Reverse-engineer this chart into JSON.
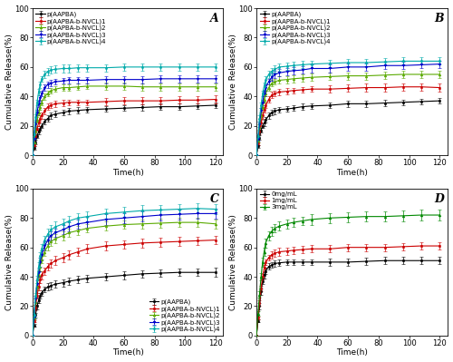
{
  "time": [
    0,
    1,
    2,
    3,
    4,
    5,
    6,
    8,
    10,
    12,
    15,
    20,
    24,
    30,
    36,
    48,
    60,
    72,
    84,
    96,
    108,
    120
  ],
  "A": {
    "label": "A",
    "series": {
      "p(AAPBA)": [
        0,
        5,
        9,
        13,
        16,
        18,
        20,
        23,
        25,
        27,
        28,
        29,
        30,
        30.5,
        31,
        31.5,
        32,
        32.5,
        33,
        33,
        33.5,
        34
      ],
      "p(AAPBA-b-NVCL)1": [
        0,
        7,
        13,
        18,
        22,
        25,
        27,
        30,
        33,
        34,
        35,
        35.5,
        36,
        36,
        36,
        36.5,
        37,
        37,
        37,
        37.5,
        37.5,
        38
      ],
      "p(AAPBA-b-NVCL)2": [
        0,
        9,
        17,
        24,
        29,
        33,
        36,
        40,
        42,
        44,
        45,
        46,
        46,
        46.5,
        47,
        47,
        47,
        46.5,
        46.5,
        46.5,
        46.5,
        46.5
      ],
      "p(AAPBA-b-NVCL)3": [
        0,
        11,
        21,
        29,
        35,
        39,
        42,
        46,
        48,
        49,
        50,
        50.5,
        51,
        51,
        51,
        51.5,
        51.5,
        51.5,
        52,
        52,
        52,
        52
      ],
      "p(AAPBA-b-NVCL)4": [
        0,
        14,
        26,
        36,
        43,
        48,
        52,
        55,
        57,
        58,
        58.5,
        59,
        59,
        59.5,
        59.5,
        59.5,
        60,
        60,
        60,
        60,
        60,
        60
      ]
    },
    "errors": {
      "p(AAPBA)": [
        0,
        1,
        1.5,
        1.5,
        1.5,
        1.5,
        1.5,
        2,
        2,
        2,
        2,
        2,
        2,
        2,
        2,
        2,
        2,
        2,
        2,
        2,
        2,
        2
      ],
      "p(AAPBA-b-NVCL)1": [
        0,
        1,
        1.5,
        1.5,
        2,
        2,
        2,
        2,
        2,
        2,
        2,
        2,
        2,
        2,
        2,
        2.5,
        2.5,
        2.5,
        2.5,
        2.5,
        2.5,
        2.5
      ],
      "p(AAPBA-b-NVCL)2": [
        0,
        1,
        1.5,
        2,
        2,
        2,
        2,
        2,
        2,
        2,
        2,
        2,
        2,
        2,
        2,
        2.5,
        2.5,
        2.5,
        2.5,
        2.5,
        2.5,
        2.5
      ],
      "p(AAPBA-b-NVCL)3": [
        0,
        1,
        2,
        2,
        2,
        2,
        2,
        2,
        2,
        2,
        2,
        2,
        2,
        2,
        2,
        2.5,
        2.5,
        2.5,
        2.5,
        2.5,
        2.5,
        2.5
      ],
      "p(AAPBA-b-NVCL)4": [
        0,
        1,
        2,
        2,
        2,
        2,
        2,
        2.5,
        2.5,
        2.5,
        2.5,
        2.5,
        2.5,
        2.5,
        2.5,
        2.5,
        2.5,
        2.5,
        2.5,
        2.5,
        2.5,
        2.5
      ]
    }
  },
  "B": {
    "label": "B",
    "series": {
      "p(AAPBA)": [
        0,
        6,
        12,
        17,
        20,
        22,
        24,
        27,
        29,
        30,
        31,
        31.5,
        32,
        33,
        33.5,
        34,
        35,
        35,
        35.5,
        36,
        36.5,
        37
      ],
      "p(AAPBA-b-NVCL)1": [
        0,
        8,
        16,
        22,
        27,
        31,
        34,
        38,
        41,
        42,
        43,
        43.5,
        44,
        44.5,
        45,
        45,
        45.5,
        46,
        46,
        46.5,
        46.5,
        46
      ],
      "p(AAPBA-b-NVCL)2": [
        0,
        10,
        19,
        27,
        33,
        38,
        42,
        46,
        49,
        50,
        51,
        51.5,
        52,
        52.5,
        53,
        53.5,
        54,
        54,
        54.5,
        55,
        55,
        55
      ],
      "p(AAPBA-b-NVCL)3": [
        0,
        11,
        21,
        30,
        36,
        42,
        46,
        50,
        53,
        55,
        56,
        57,
        57.5,
        58,
        59,
        59,
        60,
        60,
        61,
        61,
        61.5,
        62
      ],
      "p(AAPBA-b-NVCL)4": [
        0,
        13,
        25,
        34,
        42,
        47,
        51,
        55,
        57,
        58.5,
        60,
        60.5,
        61,
        61.5,
        62,
        62.5,
        63,
        63,
        63.5,
        64,
        64,
        64
      ]
    },
    "errors": {
      "p(AAPBA)": [
        0,
        1,
        1.5,
        1.5,
        1.5,
        2,
        2,
        2,
        2,
        2,
        2,
        2,
        2,
        2,
        2,
        2,
        2,
        2,
        2,
        2,
        2,
        2
      ],
      "p(AAPBA-b-NVCL)1": [
        0,
        1,
        1.5,
        2,
        2,
        2,
        2,
        2,
        2,
        2,
        2,
        2,
        2,
        2,
        2,
        2.5,
        2.5,
        2.5,
        2.5,
        2.5,
        2.5,
        2.5
      ],
      "p(AAPBA-b-NVCL)2": [
        0,
        1,
        2,
        2,
        2,
        2,
        2,
        2,
        2,
        2,
        2.5,
        2.5,
        2.5,
        2.5,
        2.5,
        2.5,
        2.5,
        2.5,
        2.5,
        2.5,
        2.5,
        2.5
      ],
      "p(AAPBA-b-NVCL)3": [
        0,
        1,
        2,
        2,
        2,
        2,
        2,
        2,
        2.5,
        2.5,
        2.5,
        2.5,
        2.5,
        2.5,
        2.5,
        2.5,
        2.5,
        2.5,
        2.5,
        2.5,
        2.5,
        2.5
      ],
      "p(AAPBA-b-NVCL)4": [
        0,
        1,
        2,
        2,
        2,
        2.5,
        2.5,
        2.5,
        2.5,
        2.5,
        2.5,
        2.5,
        2.5,
        2.5,
        2.5,
        2.5,
        2.5,
        2.5,
        2.5,
        2.5,
        2.5,
        2.5
      ]
    }
  },
  "C": {
    "label": "C",
    "series": {
      "p(AAPBA)": [
        0,
        7,
        14,
        20,
        24,
        27,
        29,
        31.5,
        33,
        34,
        35,
        36,
        37,
        38,
        39,
        40,
        41,
        42,
        42.5,
        43,
        43,
        43
      ],
      "p(AAPBA-b-NVCL)1": [
        0,
        10,
        19,
        27,
        33,
        38,
        41,
        44,
        47,
        49,
        51,
        53,
        55,
        57,
        59,
        61,
        62,
        63,
        63.5,
        64,
        64.5,
        65
      ],
      "p(AAPBA-b-NVCL)2": [
        0,
        12,
        23,
        33,
        41,
        47,
        52,
        57,
        61,
        64,
        66,
        68,
        70,
        71.5,
        73,
        74.5,
        75.5,
        76,
        76.5,
        77,
        77,
        76
      ],
      "p(AAPBA-b-NVCL)3": [
        0,
        13,
        25,
        35,
        43,
        50,
        55,
        61,
        65,
        68,
        70,
        72,
        74,
        76,
        77,
        79,
        80,
        81,
        82,
        82.5,
        83,
        83
      ],
      "p(AAPBA-b-NVCL)4": [
        0,
        14,
        27,
        38,
        47,
        54,
        59,
        65,
        69,
        72,
        74,
        76,
        78,
        80,
        81,
        83,
        84,
        85,
        85.5,
        86,
        86.5,
        86
      ]
    },
    "errors": {
      "p(AAPBA)": [
        0,
        1,
        1.5,
        2,
        2,
        2,
        2,
        2,
        2.5,
        2.5,
        2.5,
        2.5,
        2.5,
        2.5,
        2.5,
        2.5,
        2.5,
        2.5,
        2.5,
        2.5,
        2.5,
        3
      ],
      "p(AAPBA-b-NVCL)1": [
        0,
        1,
        2,
        2,
        2.5,
        2.5,
        2.5,
        2.5,
        2.5,
        2.5,
        3,
        3,
        3,
        3,
        3,
        3,
        3,
        3,
        3,
        3,
        3,
        3
      ],
      "p(AAPBA-b-NVCL)2": [
        0,
        1.5,
        2,
        2.5,
        3,
        3,
        3,
        3,
        3,
        3,
        3,
        3,
        3,
        3,
        3,
        3,
        3,
        3,
        3,
        3,
        3,
        3
      ],
      "p(AAPBA-b-NVCL)3": [
        0,
        1.5,
        2,
        2.5,
        3,
        3,
        3,
        3,
        3,
        3,
        3,
        3,
        3,
        3,
        3.5,
        3.5,
        3.5,
        3.5,
        3.5,
        3.5,
        3.5,
        3.5
      ],
      "p(AAPBA-b-NVCL)4": [
        0,
        1.5,
        2,
        2.5,
        3,
        3,
        3,
        3,
        3.5,
        3.5,
        3.5,
        3.5,
        3.5,
        3.5,
        3.5,
        3.5,
        3.5,
        3.5,
        3.5,
        3.5,
        3.5,
        3.5
      ]
    }
  },
  "D": {
    "label": "D",
    "series": {
      "0mg/mL": [
        0,
        10,
        20,
        30,
        37,
        41,
        44,
        47,
        48,
        49,
        49.5,
        50,
        50,
        50,
        50,
        50,
        50,
        50.5,
        51,
        51,
        51,
        51
      ],
      "1mg/mL": [
        0,
        12,
        22,
        32,
        40,
        46,
        50,
        53,
        55,
        56,
        57,
        57.5,
        58,
        58.5,
        59,
        59,
        60,
        60,
        60,
        60.5,
        61,
        61
      ],
      "3mg/mL": [
        0,
        15,
        28,
        40,
        50,
        57,
        63,
        68,
        71,
        73,
        74.5,
        76,
        77,
        78,
        79,
        80,
        80.5,
        81,
        81,
        81.5,
        82,
        82
      ]
    },
    "errors": {
      "0mg/mL": [
        0,
        1,
        2,
        2,
        2,
        2,
        2,
        2,
        2,
        2,
        2,
        2,
        2,
        2,
        2,
        2.5,
        2.5,
        2.5,
        2.5,
        2.5,
        2.5,
        2.5
      ],
      "1mg/mL": [
        0,
        1,
        2,
        2,
        2,
        2,
        2,
        2,
        2.5,
        2.5,
        2.5,
        2.5,
        2.5,
        2.5,
        2.5,
        2.5,
        2.5,
        2.5,
        2.5,
        2.5,
        2.5,
        2.5
      ],
      "3mg/mL": [
        0,
        1.5,
        2,
        2.5,
        3,
        3,
        3,
        3,
        3,
        3,
        3,
        3,
        3,
        3,
        3.5,
        3.5,
        3.5,
        3.5,
        3.5,
        3.5,
        3.5,
        3.5
      ]
    }
  },
  "colors_ABCD": [
    "#000000",
    "#cc0000",
    "#5aaa00",
    "#0000cc",
    "#00aaaa"
  ],
  "colors_D": [
    "#000000",
    "#cc0000",
    "#008800"
  ],
  "markers_ABCD": [
    "s",
    "s",
    "^",
    "v",
    "d"
  ],
  "markers_D": [
    "s",
    "s",
    "^"
  ],
  "legend_labels_ABCD": [
    "p(AAPBA)",
    "p(AAPBA-b-NVCL)1",
    "p(AAPBA-b-NVCL)2",
    "p(AAPBA-b-NVCL)3",
    "p(AAPBA-b-NVCL)4"
  ],
  "legend_labels_D": [
    "0mg/mL",
    "1mg/mL",
    "3mg/mL"
  ],
  "xlabel": "Time(h)",
  "ylabel": "Cumulative Release(%)",
  "xlim": [
    0,
    125
  ],
  "ylim": [
    0,
    100
  ],
  "xticks": [
    0,
    20,
    40,
    60,
    80,
    100,
    120
  ],
  "yticks": [
    0,
    20,
    40,
    60,
    80,
    100
  ],
  "fontsize_label": 6.5,
  "fontsize_tick": 6,
  "fontsize_legend": 5.0,
  "fontsize_panel": 9,
  "linewidth": 0.8,
  "markersize": 2.0,
  "capsize": 1.2,
  "elinewidth": 0.5
}
